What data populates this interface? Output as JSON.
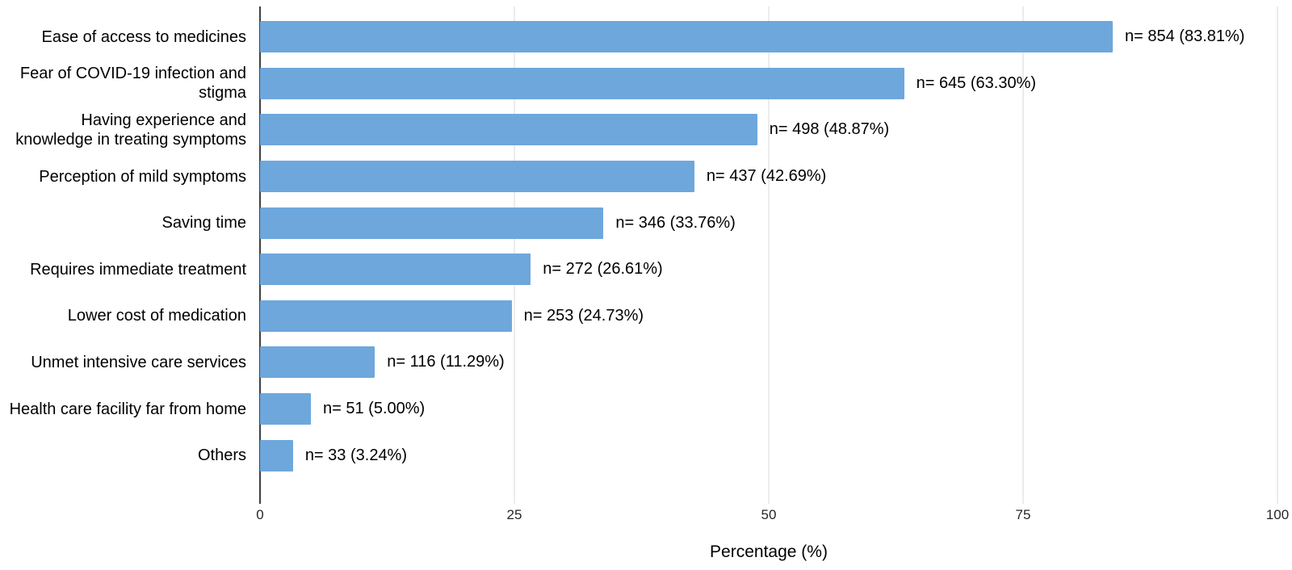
{
  "chart_data": {
    "type": "bar",
    "orientation": "horizontal",
    "title": "",
    "xlabel": "Percentage (%)",
    "ylabel": "",
    "xlim": [
      0,
      100
    ],
    "xticks": [
      "0",
      "25",
      "50",
      "75",
      "100"
    ],
    "grid": "vertical-only",
    "legend": "none",
    "categories": [
      "Ease of access to medicines",
      "Fear of COVID-19 infection and\nstigma",
      "Having experience and\nknowledge in treating symptoms",
      "Perception of mild symptoms",
      "Saving time",
      "Requires immediate treatment",
      "Lower cost of medication",
      "Unmet intensive care services",
      "Health care facility far from home",
      "Others"
    ],
    "values": [
      83.81,
      63.3,
      48.87,
      42.69,
      33.76,
      26.61,
      24.73,
      11.29,
      5.0,
      3.24
    ],
    "counts": [
      854,
      645,
      498,
      437,
      346,
      272,
      253,
      116,
      51,
      33
    ],
    "bar_labels": [
      "n= 854 (83.81%)",
      "n= 645 (63.30%)",
      "n= 498 (48.87%)",
      "n= 437 (42.69%)",
      "n= 346 (33.76%)",
      "n= 272 (26.61%)",
      "n= 253 (24.73%)",
      "n= 116 (11.29%)",
      "n= 51 (5.00%)",
      "n= 33 (3.24%)"
    ],
    "colors": {
      "bar": "#6ea7dc",
      "gridline": "#d9d9d9",
      "axis_line": "#404040",
      "text": "#000000",
      "background": "#ffffff"
    }
  }
}
